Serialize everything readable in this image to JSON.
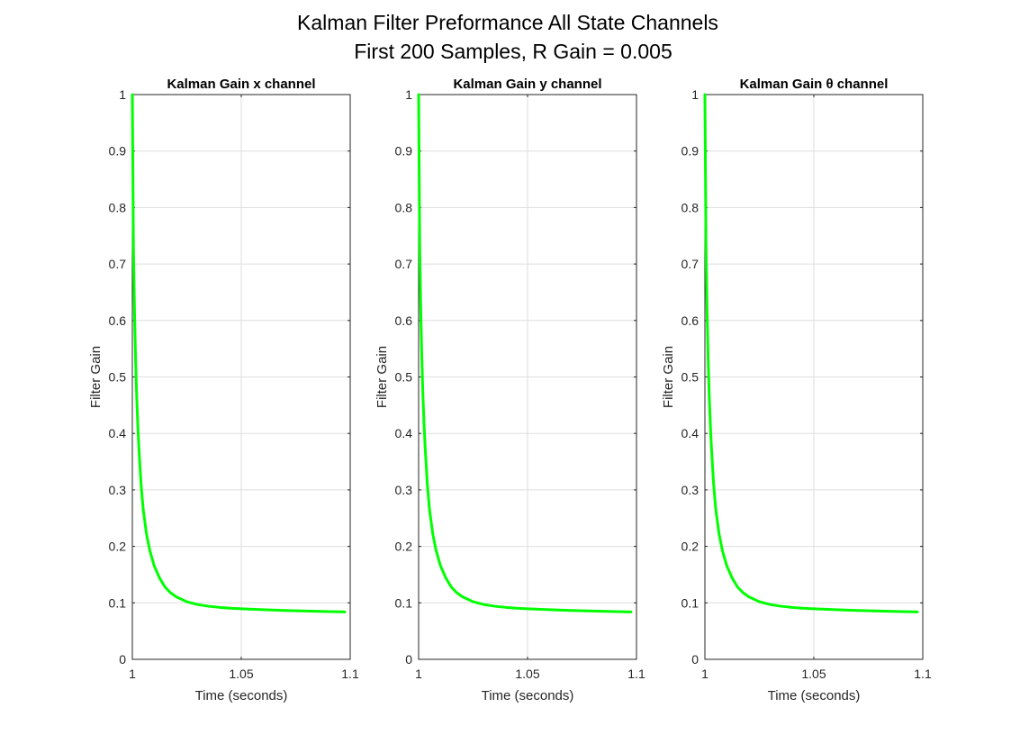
{
  "figure": {
    "title_line1": "Kalman Filter Preformance All State Channels",
    "title_line2": "First 200 Samples, R Gain = 0.005"
  },
  "chart_data": [
    {
      "type": "line",
      "title": "Kalman Gain x channel",
      "xlabel": "Time (seconds)",
      "ylabel": "Filter Gain",
      "xlim": [
        1,
        1.1
      ],
      "ylim": [
        0,
        1
      ],
      "xticks": [
        1,
        1.05,
        1.1
      ],
      "xtick_labels": [
        "1",
        "1.05",
        "1.1"
      ],
      "yticks": [
        0,
        0.1,
        0.2,
        0.3,
        0.4,
        0.5,
        0.6,
        0.7,
        0.8,
        0.9,
        1
      ],
      "ytick_labels": [
        "0",
        "0.1",
        "0.2",
        "0.3",
        "0.4",
        "0.5",
        "0.6",
        "0.7",
        "0.8",
        "0.9",
        "1"
      ],
      "grid": true,
      "series": [
        {
          "color": "#00ff00",
          "x": [
            1.0,
            1.0005,
            1.001,
            1.0015,
            1.002,
            1.0025,
            1.003,
            1.004,
            1.005,
            1.0065,
            1.008,
            1.01,
            1.0125,
            1.015,
            1.0175,
            1.02,
            1.025,
            1.03,
            1.035,
            1.04,
            1.045,
            1.05,
            1.06,
            1.07,
            1.08,
            1.09,
            1.0975
          ],
          "y": [
            1.0,
            0.73,
            0.615,
            0.53,
            0.465,
            0.415,
            0.375,
            0.31,
            0.265,
            0.222,
            0.193,
            0.166,
            0.144,
            0.128,
            0.118,
            0.111,
            0.102,
            0.097,
            0.094,
            0.092,
            0.0905,
            0.0895,
            0.088,
            0.0866,
            0.0855,
            0.0846,
            0.084
          ]
        }
      ]
    },
    {
      "type": "line",
      "title": "Kalman Gain y channel",
      "xlabel": "Time (seconds)",
      "ylabel": "Filter Gain",
      "xlim": [
        1,
        1.1
      ],
      "ylim": [
        0,
        1
      ],
      "xticks": [
        1,
        1.05,
        1.1
      ],
      "xtick_labels": [
        "1",
        "1.05",
        "1.1"
      ],
      "yticks": [
        0,
        0.1,
        0.2,
        0.3,
        0.4,
        0.5,
        0.6,
        0.7,
        0.8,
        0.9,
        1
      ],
      "ytick_labels": [
        "0",
        "0.1",
        "0.2",
        "0.3",
        "0.4",
        "0.5",
        "0.6",
        "0.7",
        "0.8",
        "0.9",
        "1"
      ],
      "grid": true,
      "series": [
        {
          "color": "#00ff00",
          "x": [
            1.0,
            1.0005,
            1.001,
            1.0015,
            1.002,
            1.0025,
            1.003,
            1.004,
            1.005,
            1.0065,
            1.008,
            1.01,
            1.0125,
            1.015,
            1.0175,
            1.02,
            1.025,
            1.03,
            1.035,
            1.04,
            1.045,
            1.05,
            1.06,
            1.07,
            1.08,
            1.09,
            1.0975
          ],
          "y": [
            1.0,
            0.73,
            0.615,
            0.53,
            0.465,
            0.415,
            0.375,
            0.31,
            0.265,
            0.222,
            0.193,
            0.166,
            0.144,
            0.128,
            0.118,
            0.111,
            0.102,
            0.097,
            0.094,
            0.092,
            0.0905,
            0.0895,
            0.088,
            0.0866,
            0.0855,
            0.0846,
            0.084
          ]
        }
      ]
    },
    {
      "type": "line",
      "title": "Kalman Gain θ channel",
      "xlabel": "Time (seconds)",
      "ylabel": "Filter Gain",
      "xlim": [
        1,
        1.1
      ],
      "ylim": [
        0,
        1
      ],
      "xticks": [
        1,
        1.05,
        1.1
      ],
      "xtick_labels": [
        "1",
        "1.05",
        "1.1"
      ],
      "yticks": [
        0,
        0.1,
        0.2,
        0.3,
        0.4,
        0.5,
        0.6,
        0.7,
        0.8,
        0.9,
        1
      ],
      "ytick_labels": [
        "0",
        "0.1",
        "0.2",
        "0.3",
        "0.4",
        "0.5",
        "0.6",
        "0.7",
        "0.8",
        "0.9",
        "1"
      ],
      "grid": true,
      "series": [
        {
          "color": "#00ff00",
          "x": [
            1.0,
            1.0005,
            1.001,
            1.0015,
            1.002,
            1.0025,
            1.003,
            1.004,
            1.005,
            1.0065,
            1.008,
            1.01,
            1.0125,
            1.015,
            1.0175,
            1.02,
            1.025,
            1.03,
            1.035,
            1.04,
            1.045,
            1.05,
            1.06,
            1.07,
            1.08,
            1.09,
            1.0975
          ],
          "y": [
            1.0,
            0.73,
            0.615,
            0.53,
            0.465,
            0.415,
            0.375,
            0.31,
            0.265,
            0.222,
            0.193,
            0.166,
            0.144,
            0.128,
            0.118,
            0.111,
            0.102,
            0.097,
            0.094,
            0.092,
            0.0905,
            0.0895,
            0.088,
            0.0866,
            0.0855,
            0.0846,
            0.084
          ]
        }
      ]
    }
  ]
}
